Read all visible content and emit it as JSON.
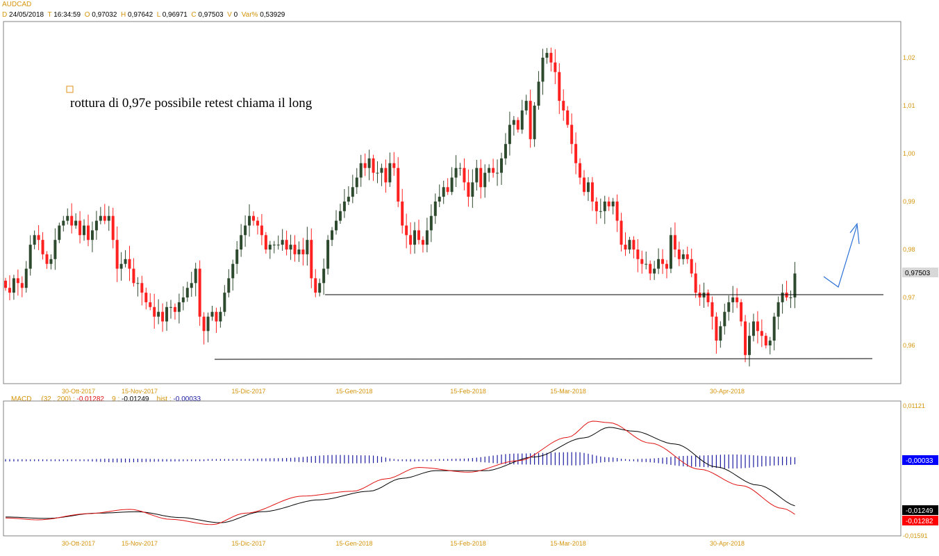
{
  "header": {
    "symbol": "AUDCAD",
    "d_label": "D",
    "date": "24/05/2018",
    "t_label": "T",
    "time": "16:34:59",
    "o_label": "O",
    "open": "0,97032",
    "h_label": "H",
    "high": "0,97642",
    "l_label": "L",
    "low": "0,96971",
    "c_label": "C",
    "close": "0,97503",
    "v_label": "V",
    "volume": "0",
    "var_label": "Var%",
    "var": "0,53929"
  },
  "annotation": {
    "text": "rottura di 0,97e possibile retest chiama il long"
  },
  "price_labels": {
    "last": "0,97503"
  },
  "macd_header": {
    "name": "MACD",
    "params": "(32 , 200) :",
    "macd_value": "-0,01282",
    "signal_label": "9 :",
    "signal_value": "-0,01249",
    "hist_label": "hist :",
    "hist_value": "-0,00033"
  },
  "macd_labels": {
    "top": "0,01121",
    "bottom": "-0,01591",
    "hist": "-0,00033",
    "signal": "-0,01249",
    "macd": "-0,01282"
  },
  "colors": {
    "up_candle": "#2e4a2e",
    "down_candle": "#ff2020",
    "macd_line": "#e01010",
    "signal_line": "#000000",
    "histogram": "#1a1aa0",
    "arrow": "#2a6fd6",
    "tick_labels": "#d4940a",
    "hist_badge": "#0000ff",
    "signal_badge": "#000000",
    "macd_badge": "#ff0000",
    "last_price_badge": "#d8d8d8"
  },
  "chart_data": [
    {
      "type": "candlestick",
      "title": "AUDCAD",
      "timeframe": "daily",
      "x_tick_labels": [
        "30-Ott-2017",
        "15-Nov-2017",
        "15-Dic-2017",
        "15-Gen-2018",
        "15-Feb-2018",
        "15-Mar-2018",
        "30-Apr-2018"
      ],
      "y_tick_labels": [
        "0,96",
        "0,97",
        "0,98",
        "0,99",
        "1,00",
        "1,01",
        "1,02"
      ],
      "y_ticks": [
        0.96,
        0.97,
        0.98,
        0.99,
        1.0,
        1.01,
        1.02
      ],
      "ylim": [
        0.9535,
        1.0255
      ],
      "last_close": 0.97503,
      "close_series": [
        0.972,
        0.971,
        0.974,
        0.973,
        0.972,
        0.976,
        0.981,
        0.983,
        0.982,
        0.979,
        0.977,
        0.978,
        0.982,
        0.985,
        0.986,
        0.987,
        0.985,
        0.986,
        0.983,
        0.985,
        0.982,
        0.984,
        0.986,
        0.987,
        0.986,
        0.987,
        0.982,
        0.976,
        0.977,
        0.978,
        0.976,
        0.973,
        0.973,
        0.971,
        0.969,
        0.968,
        0.966,
        0.967,
        0.965,
        0.968,
        0.968,
        0.967,
        0.969,
        0.97,
        0.972,
        0.973,
        0.976,
        0.966,
        0.963,
        0.966,
        0.967,
        0.965,
        0.967,
        0.971,
        0.974,
        0.977,
        0.98,
        0.983,
        0.985,
        0.987,
        0.986,
        0.985,
        0.983,
        0.98,
        0.981,
        0.981,
        0.981,
        0.982,
        0.98,
        0.981,
        0.979,
        0.98,
        0.979,
        0.982,
        0.974,
        0.971,
        0.973,
        0.976,
        0.982,
        0.984,
        0.986,
        0.988,
        0.99,
        0.991,
        0.993,
        0.995,
        0.998,
        0.997,
        0.999,
        0.996,
        0.996,
        0.997,
        0.994,
        0.998,
        0.997,
        0.99,
        0.985,
        0.983,
        0.981,
        0.984,
        0.982,
        0.981,
        0.984,
        0.987,
        0.99,
        0.991,
        0.993,
        0.992,
        0.995,
        0.997,
        0.997,
        0.994,
        0.991,
        0.994,
        0.997,
        0.993,
        0.996,
        0.997,
        0.996,
        0.996,
        0.999,
        1.002,
        1.006,
        1.007,
        1.005,
        1.009,
        1.011,
        1.003,
        1.01,
        1.015,
        1.02,
        1.021,
        1.019,
        1.017,
        1.011,
        1.009,
        1.006,
        1.002,
        0.998,
        0.995,
        0.992,
        0.994,
        0.99,
        0.988,
        0.988,
        0.99,
        0.989,
        0.99,
        0.986,
        0.981,
        0.98,
        0.982,
        0.98,
        0.978,
        0.977,
        0.977,
        0.975,
        0.976,
        0.978,
        0.977,
        0.976,
        0.983,
        0.98,
        0.978,
        0.979,
        0.978,
        0.975,
        0.971,
        0.97,
        0.971,
        0.969,
        0.966,
        0.961,
        0.964,
        0.967,
        0.969,
        0.97,
        0.969,
        0.965,
        0.958,
        0.962,
        0.965,
        0.963,
        0.962,
        0.96,
        0.961,
        0.966,
        0.969,
        0.971,
        0.97,
        0.97,
        0.975
      ],
      "support_lines": [
        0.9708,
        0.9572
      ]
    },
    {
      "type": "line",
      "title": "MACD (32 , 200)",
      "series": [
        {
          "name": "MACD",
          "last": -0.01282
        },
        {
          "name": "9",
          "last": -0.01249
        },
        {
          "name": "hist",
          "last": -0.00033
        }
      ],
      "ylim": [
        -0.01591,
        0.01121
      ],
      "y_tick_labels": [
        "0,01121",
        "-0,01591"
      ],
      "x_tick_labels": [
        "30-Ott-2017",
        "15-Nov-2017",
        "15-Dic-2017",
        "15-Gen-2018",
        "15-Feb-2018",
        "15-Mar-2018",
        "30-Apr-2018"
      ],
      "macd_keypoints": [
        [
          0,
          -0.0123
        ],
        [
          8,
          -0.0127
        ],
        [
          20,
          -0.0114
        ],
        [
          30,
          -0.0105
        ],
        [
          40,
          -0.0126
        ],
        [
          50,
          -0.0137
        ],
        [
          58,
          -0.0113
        ],
        [
          72,
          -0.0077
        ],
        [
          84,
          -0.0067
        ],
        [
          92,
          -0.0041
        ],
        [
          100,
          -0.0017
        ],
        [
          112,
          -0.0027
        ],
        [
          124,
          -0.0003
        ],
        [
          136,
          0.0046
        ],
        [
          142,
          0.008
        ],
        [
          146,
          0.0077
        ],
        [
          156,
          0.0034
        ],
        [
          168,
          -0.0021
        ],
        [
          178,
          -0.0055
        ],
        [
          188,
          -0.0103
        ],
        [
          194,
          -0.0128
        ],
        [
          197,
          -0.0128
        ]
      ],
      "signal_keypoints": [
        [
          0,
          -0.0121
        ],
        [
          10,
          -0.0124
        ],
        [
          22,
          -0.0113
        ],
        [
          32,
          -0.011
        ],
        [
          42,
          -0.0122
        ],
        [
          52,
          -0.0133
        ],
        [
          62,
          -0.011
        ],
        [
          76,
          -0.0085
        ],
        [
          88,
          -0.0067
        ],
        [
          96,
          -0.004
        ],
        [
          104,
          -0.0024
        ],
        [
          116,
          -0.0024
        ],
        [
          128,
          0.0005
        ],
        [
          140,
          0.0045
        ],
        [
          146,
          0.0067
        ],
        [
          152,
          0.0059
        ],
        [
          162,
          0.0032
        ],
        [
          172,
          -0.0016
        ],
        [
          182,
          -0.0054
        ],
        [
          192,
          -0.0099
        ],
        [
          197,
          -0.0125
        ]
      ],
      "hist_keypoints": [
        [
          0,
          -0.0003
        ],
        [
          14,
          -0.0001
        ],
        [
          28,
          -0.0005
        ],
        [
          40,
          -0.0003
        ],
        [
          52,
          0.0001
        ],
        [
          66,
          0.0004
        ],
        [
          80,
          0.0011
        ],
        [
          88,
          0.001
        ],
        [
          98,
          -0.0003
        ],
        [
          110,
          0.0003
        ],
        [
          124,
          0.0014
        ],
        [
          138,
          0.0017
        ],
        [
          146,
          0.0006
        ],
        [
          154,
          -0.0004
        ],
        [
          166,
          -0.0014
        ],
        [
          176,
          -0.0018
        ],
        [
          188,
          -0.0011
        ],
        [
          197,
          -0.0003
        ]
      ]
    }
  ]
}
